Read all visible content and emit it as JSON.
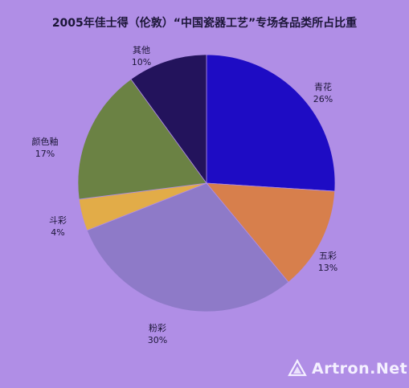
{
  "chart_data": {
    "type": "pie",
    "title": "2005年佳士得（伦敦）“中国瓷器工艺”专场各品类所占比重",
    "slices": [
      {
        "name": "青花",
        "value": 26,
        "label": "26%",
        "color": "#1e0cc4"
      },
      {
        "name": "五彩",
        "value": 13,
        "label": "13%",
        "color": "#d77f4c"
      },
      {
        "name": "粉彩",
        "value": 30,
        "label": "30%",
        "color": "#8e7ac8"
      },
      {
        "name": "斗彩",
        "value": 4,
        "label": "4%",
        "color": "#e2ac48"
      },
      {
        "name": "颜色釉",
        "value": 17,
        "label": "17%",
        "color": "#6b8244"
      },
      {
        "name": "其他",
        "value": 10,
        "label": "10%",
        "color": "#23135c"
      }
    ]
  },
  "watermark": {
    "text": "Artron.Net",
    "icon": "artron-logo-icon"
  }
}
